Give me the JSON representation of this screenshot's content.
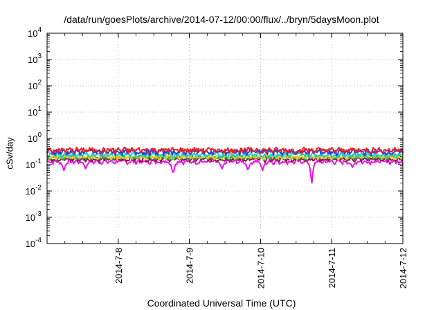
{
  "chart_data": {
    "type": "line",
    "title": "/data/run/goesPlots/archive/2014-07-12/00:00/flux/../bryn/5daysMoon.plot",
    "xlabel": "Coordinated Universal Time (UTC)",
    "ylabel": "cSv/day",
    "y_scale": "log",
    "ylim": [
      0.0001,
      10000
    ],
    "y_ticks": [
      {
        "base": "10",
        "exp": "-4",
        "value": 0.0001
      },
      {
        "base": "10",
        "exp": "-3",
        "value": 0.001
      },
      {
        "base": "10",
        "exp": "-2",
        "value": 0.01
      },
      {
        "base": "10",
        "exp": "-1",
        "value": 0.1
      },
      {
        "base": "10",
        "exp": "0",
        "value": 1
      },
      {
        "base": "10",
        "exp": "1",
        "value": 10
      },
      {
        "base": "10",
        "exp": "2",
        "value": 100
      },
      {
        "base": "10",
        "exp": "3",
        "value": 1000
      },
      {
        "base": "10",
        "exp": "4",
        "value": 10000
      }
    ],
    "xlim": [
      "2014-07-07T00:00",
      "2014-07-12T00:00"
    ],
    "x_ticks": [
      "2014-7-8",
      "2014-7-9",
      "2014-7-10",
      "2014-7-11",
      "2014-7-12"
    ],
    "grid": true,
    "legend": "none",
    "series": [
      {
        "color": "#e8202a",
        "level": 0.36,
        "noise": 0.22
      },
      {
        "color": "#2a3fd6",
        "level": 0.31,
        "noise": 0.22
      },
      {
        "color": "#20c8c8",
        "level": 0.24,
        "noise": 0.18
      },
      {
        "color": "#e8d020",
        "level": 0.2,
        "noise": 0.15
      },
      {
        "color": "#2a9a3a",
        "level": 0.19,
        "noise": 0.15
      },
      {
        "color": "#8a1a3a",
        "level": 0.16,
        "noise": 0.14
      },
      {
        "color": "#ee10ee",
        "level": 0.13,
        "noise": 0.16,
        "dips": [
          {
            "date": "2014-07-07T05:40",
            "value": 0.06
          },
          {
            "date": "2014-07-07T13:00",
            "value": 0.07
          },
          {
            "date": "2014-07-08T18:30",
            "value": 0.04
          },
          {
            "date": "2014-07-09T11:00",
            "value": 0.07
          },
          {
            "date": "2014-07-09T19:45",
            "value": 0.06
          },
          {
            "date": "2014-07-10T00:40",
            "value": 0.06
          },
          {
            "date": "2014-07-10T17:15",
            "value": 0.012
          },
          {
            "date": "2014-07-11T07:00",
            "value": 0.08
          }
        ]
      }
    ]
  }
}
